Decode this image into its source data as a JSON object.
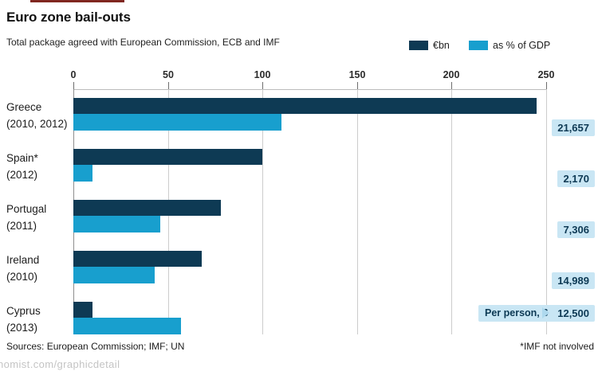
{
  "header": {
    "title": "Euro zone bail-outs",
    "subtitle": "Total package agreed with European Commission, ECB and IMF"
  },
  "legend": [
    {
      "label": "€bn",
      "color": "#0e3a54"
    },
    {
      "label": "as % of GDP",
      "color": "#189fce"
    }
  ],
  "chart_data": {
    "type": "bar",
    "orientation": "horizontal",
    "title": "Euro zone bail-outs",
    "subtitle": "Total package agreed with European Commission, ECB and IMF",
    "categories": [
      "Greece",
      "Spain*",
      "Portugal",
      "Ireland",
      "Cyprus"
    ],
    "category_years": [
      "(2010, 2012)",
      "(2012)",
      "(2011)",
      "(2010)",
      "(2013)"
    ],
    "series": [
      {
        "name": "€bn",
        "color": "#0e3a54",
        "values": [
          245,
          100,
          78,
          68,
          10
        ]
      },
      {
        "name": "as % of GDP",
        "color": "#189fce",
        "values": [
          110,
          10,
          46,
          43,
          57
        ]
      }
    ],
    "per_person_label": "Per person, €",
    "per_person_values": [
      "21,657",
      "2,170",
      "7,306",
      "14,989",
      "12,500"
    ],
    "x_ticks": [
      "0",
      "50",
      "100",
      "150",
      "200",
      "250"
    ],
    "xlim": [
      0,
      250
    ],
    "grid": true,
    "legend_position": "top-right"
  },
  "footer": {
    "sources": "Sources: European Commission; IMF; UN",
    "footnote": "*IMF not involved",
    "watermark": "nomist.com/graphicdetail"
  },
  "colors": {
    "bar_dark": "#0e3a54",
    "bar_light": "#189fce",
    "value_box_bg": "#c9e6f4",
    "value_box_text": "#0d3954",
    "red_accent": "#802720",
    "gridline": "#cccccc"
  }
}
